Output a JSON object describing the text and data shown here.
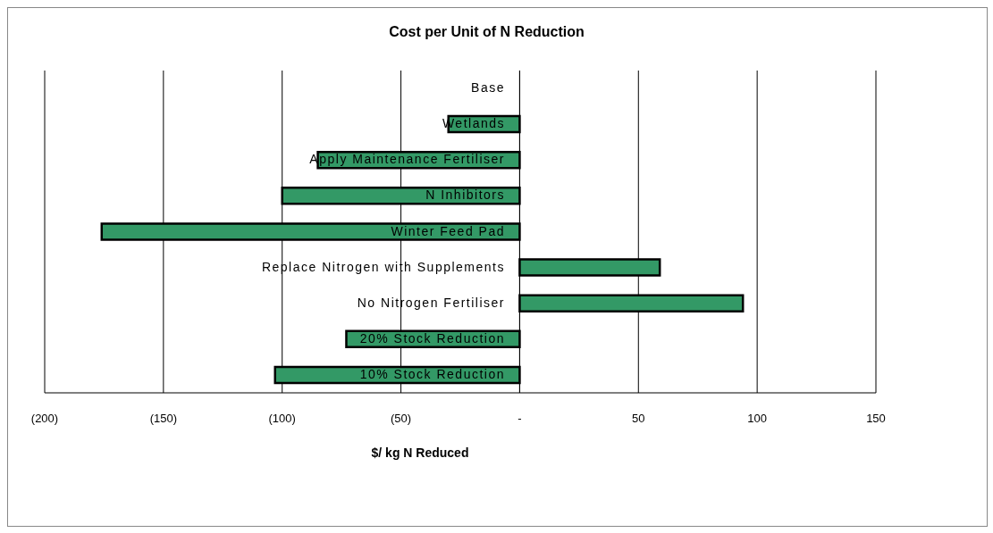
{
  "chart_data": {
    "type": "bar",
    "orientation": "horizontal",
    "title": "Cost per Unit of N Reduction",
    "xlabel": "$/ kg N Reduced",
    "categories": [
      "Base",
      "Wetlands",
      "Apply Maintenance Fertiliser",
      "N Inhibitors",
      "Winter Feed Pad",
      "Replace Nitrogen with Supplements",
      "No Nitrogen Fertiliser",
      "20% Stock Reduction",
      "10% Stock Reduction"
    ],
    "values": [
      0,
      -30,
      -85,
      -100,
      -176,
      59,
      94,
      -73,
      -103
    ],
    "color": "#339966",
    "xlim": [
      -200,
      150
    ],
    "xticks": [
      {
        "value": -200,
        "label": "(200)"
      },
      {
        "value": -150,
        "label": "(150)"
      },
      {
        "value": -100,
        "label": "(100)"
      },
      {
        "value": -50,
        "label": "(50)"
      },
      {
        "value": 0,
        "label": "-"
      },
      50,
      100,
      150
    ],
    "grid": "x"
  }
}
